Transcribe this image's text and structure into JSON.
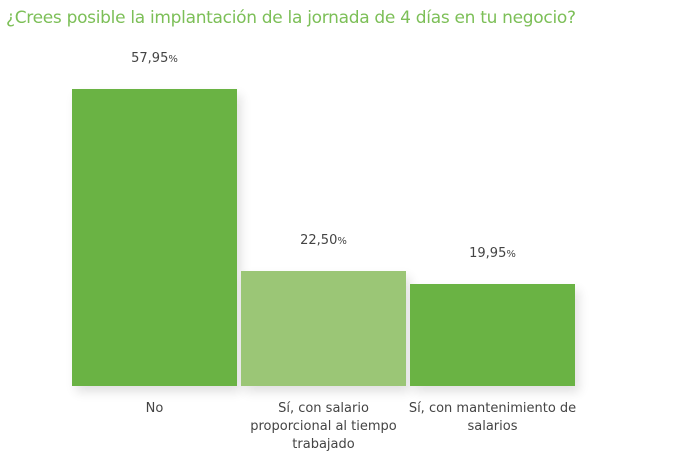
{
  "chart_data": {
    "type": "bar",
    "title": "¿Crees posible la implantación de la jornada de 4 días en tu negocio?",
    "categories": [
      "No",
      "Sí, con salario proporcional al tiempo trabajado",
      "Sí, con mantenimiento de salarios"
    ],
    "values": [
      57.95,
      22.5,
      19.95
    ],
    "value_labels": [
      "57,95",
      "22,50",
      "19,95"
    ],
    "unit": "%",
    "colors": [
      "#6ab344",
      "#9bc676",
      "#6ab344"
    ],
    "title_color": "#7cbf57",
    "xlabel": "",
    "ylabel": "",
    "ylim": [
      0,
      58
    ],
    "grid": false,
    "axes_visible": false
  }
}
